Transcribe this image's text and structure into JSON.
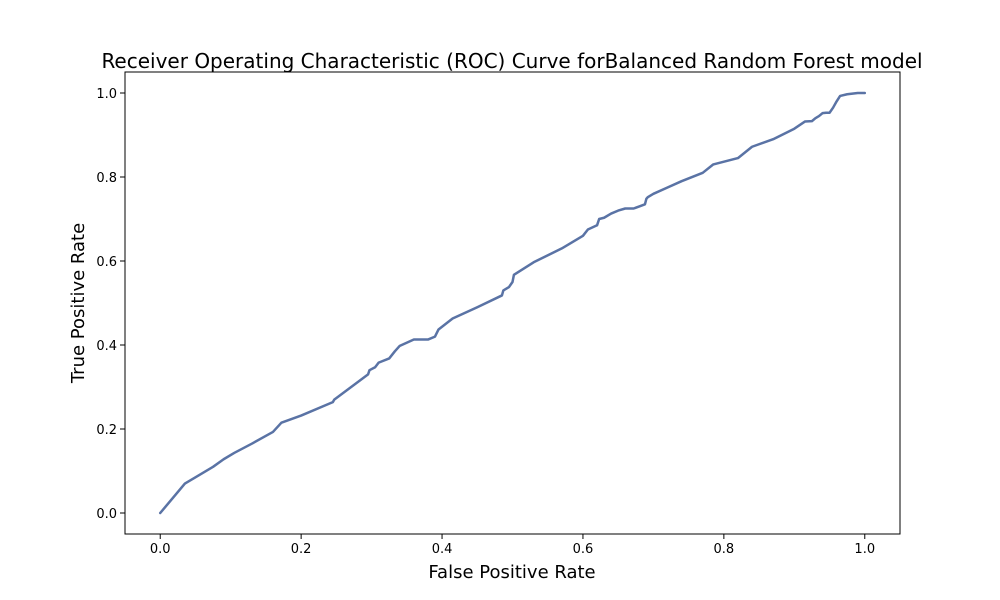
{
  "chart_data": {
    "type": "line",
    "title": "Receiver Operating Characteristic (ROC) Curve forBalanced Random Forest  model",
    "xlabel": "False Positive Rate",
    "ylabel": "True Positive Rate",
    "xlim": [
      -0.05,
      1.05
    ],
    "ylim": [
      -0.05,
      1.05
    ],
    "x_ticks": [
      "0.0",
      "0.2",
      "0.4",
      "0.6",
      "0.8",
      "1.0"
    ],
    "y_ticks": [
      "0.0",
      "0.2",
      "0.4",
      "0.6",
      "0.8",
      "1.0"
    ],
    "grid": false,
    "line_color": "#5a73a5",
    "series": [
      {
        "x": [
          0.0,
          0.02,
          0.035,
          0.05,
          0.075,
          0.09,
          0.105,
          0.13,
          0.16,
          0.172,
          0.2,
          0.245,
          0.247,
          0.295,
          0.297,
          0.305,
          0.31,
          0.325,
          0.333,
          0.34,
          0.36,
          0.38,
          0.39,
          0.395,
          0.415,
          0.45,
          0.485,
          0.487,
          0.495,
          0.5,
          0.502,
          0.53,
          0.57,
          0.6,
          0.607,
          0.62,
          0.623,
          0.63,
          0.64,
          0.65,
          0.66,
          0.672,
          0.68,
          0.688,
          0.69,
          0.692,
          0.7,
          0.72,
          0.74,
          0.77,
          0.785,
          0.82,
          0.84,
          0.87,
          0.9,
          0.915,
          0.925,
          0.93,
          0.935,
          0.94,
          0.945,
          0.95,
          0.955,
          0.96,
          0.965,
          0.975,
          0.99,
          1.0
        ],
        "y": [
          0.0,
          0.04,
          0.07,
          0.085,
          0.11,
          0.128,
          0.143,
          0.165,
          0.193,
          0.215,
          0.232,
          0.264,
          0.27,
          0.33,
          0.34,
          0.347,
          0.358,
          0.368,
          0.385,
          0.398,
          0.413,
          0.413,
          0.42,
          0.437,
          0.463,
          0.49,
          0.518,
          0.53,
          0.538,
          0.55,
          0.567,
          0.597,
          0.63,
          0.66,
          0.675,
          0.685,
          0.7,
          0.703,
          0.713,
          0.72,
          0.725,
          0.725,
          0.73,
          0.735,
          0.748,
          0.752,
          0.76,
          0.775,
          0.79,
          0.81,
          0.83,
          0.845,
          0.872,
          0.89,
          0.915,
          0.932,
          0.933,
          0.94,
          0.945,
          0.952,
          0.953,
          0.953,
          0.965,
          0.98,
          0.993,
          0.997,
          1.0,
          1.0
        ]
      }
    ]
  }
}
